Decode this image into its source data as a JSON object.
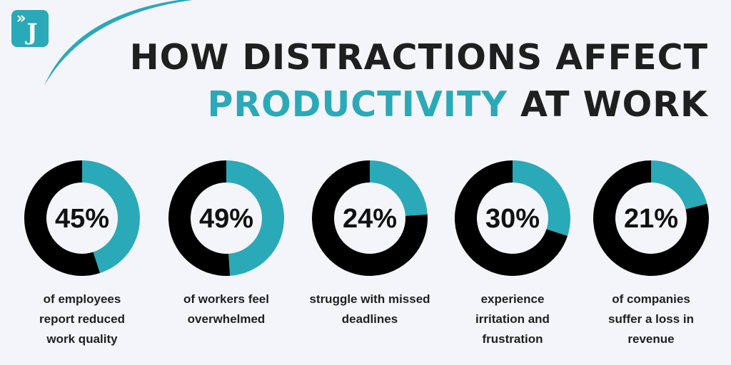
{
  "header": {
    "line1": "HOW DISTRACTIONS AFFECT",
    "line2_accent": "PRODUCTIVITY",
    "line2_rest": "AT WORK"
  },
  "logo": {
    "letter": "J",
    "icon": "double-chevron-right-icon"
  },
  "colors": {
    "accent": "#2aa9b8",
    "dark": "#000000",
    "background": "#f4f5fa"
  },
  "chart_data": [
    {
      "type": "pie",
      "values": [
        45,
        55
      ],
      "label": "45%",
      "caption": [
        "of employees",
        "report reduced",
        "work quality"
      ]
    },
    {
      "type": "pie",
      "values": [
        49,
        51
      ],
      "label": "49%",
      "caption": [
        "of workers feel",
        "overwhelmed"
      ]
    },
    {
      "type": "pie",
      "values": [
        24,
        76
      ],
      "label": "24%",
      "caption": [
        "struggle with missed",
        "deadlines"
      ]
    },
    {
      "type": "pie",
      "values": [
        30,
        70
      ],
      "label": "30%",
      "caption": [
        "experience",
        "irritation and",
        "frustration"
      ]
    },
    {
      "type": "pie",
      "values": [
        21,
        79
      ],
      "label": "21%",
      "caption": [
        "of companies",
        "suffer a loss in",
        "revenue"
      ]
    }
  ]
}
